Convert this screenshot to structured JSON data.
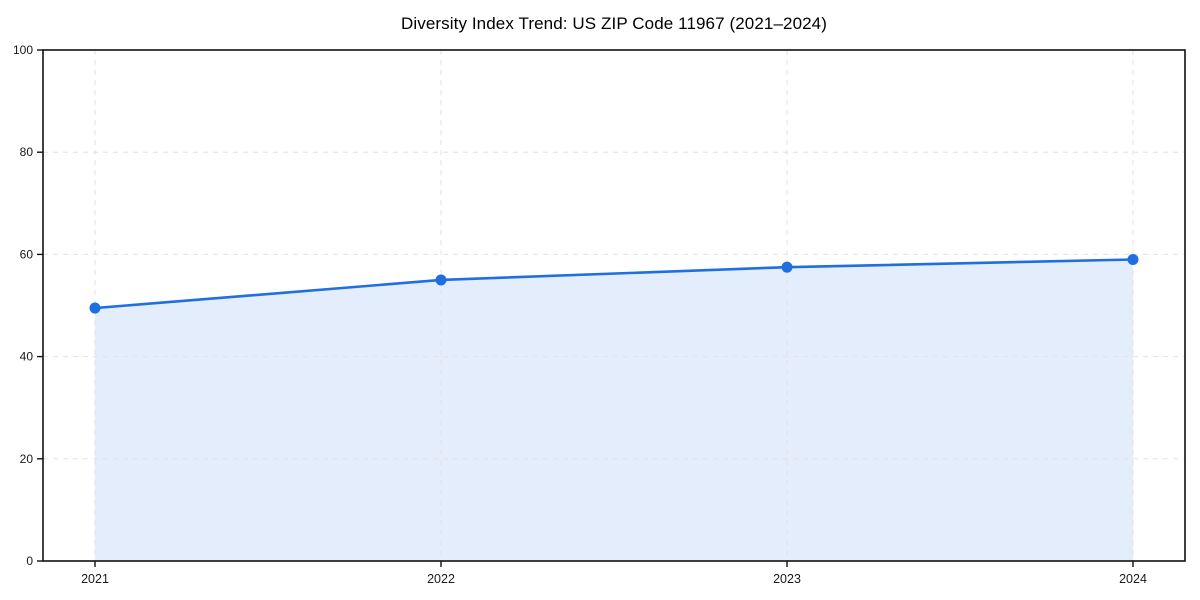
{
  "page": {
    "background": "#ffffff"
  },
  "chart_data": {
    "type": "area",
    "title": "Diversity Index Trend: US ZIP Code 11967 (2021–2024)",
    "series_name": "Diversity Index",
    "categories": [
      "2021",
      "2022",
      "2023",
      "2024"
    ],
    "x": [
      2021,
      2022,
      2023,
      2024
    ],
    "values": [
      49.5,
      55,
      57.5,
      59
    ],
    "xlabel": "",
    "ylabel": "",
    "ylim": [
      0,
      100
    ],
    "yticks": [
      0,
      20,
      40,
      60,
      80,
      100
    ],
    "grid": true,
    "grid_style": "dashed",
    "legend_position": "none",
    "colors": {
      "line": "#1f6fe0",
      "marker": "#1f6fe0",
      "fill": "#1f6fe0",
      "fill_opacity": 0.12,
      "gridline": "#e2e2e2",
      "spine": "#111111",
      "tick": "#111111",
      "tick_label": "#1a1a1a",
      "title": "#000000"
    }
  }
}
